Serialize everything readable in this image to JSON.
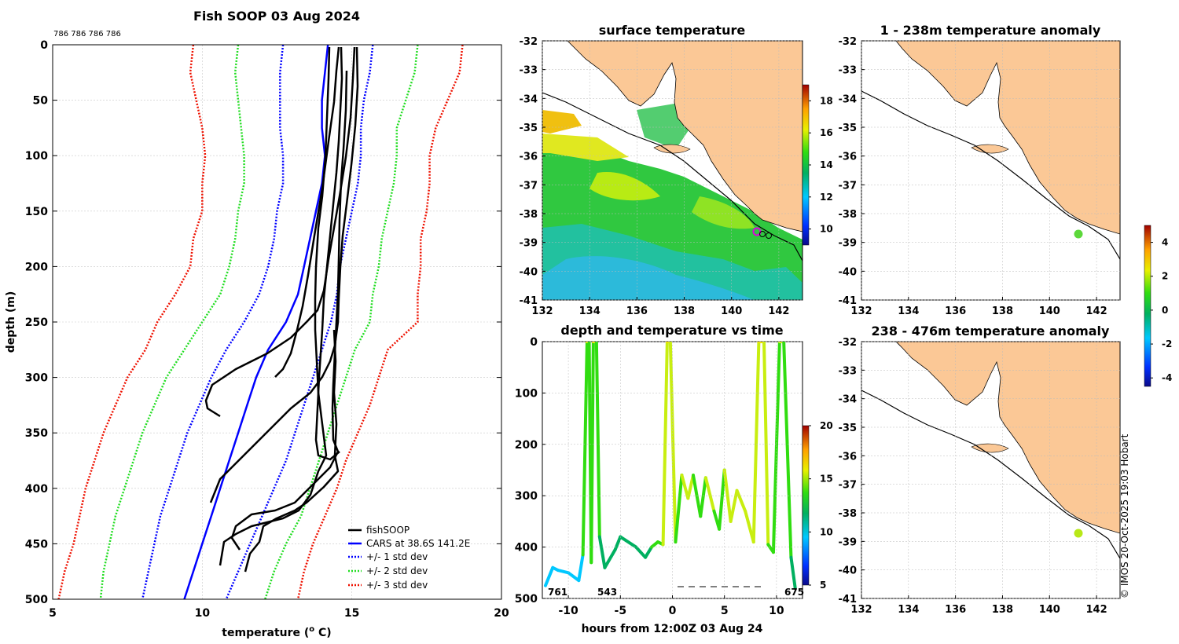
{
  "header": {
    "title": "Fish SOOP 03 Aug 2024",
    "top_label": "786 786 786 786"
  },
  "profile": {
    "xlabel": "temperature (",
    "xlabel_sup": "o",
    "xlabel_end": " C)",
    "ylabel": "depth (m)"
  },
  "sst": {
    "title": "surface temperature"
  },
  "time_panel": {
    "title": "depth and temperature vs time",
    "xlabel": "hours from 12:00Z 03 Aug 24",
    "counts": [
      "761",
      "543",
      "675"
    ]
  },
  "anomaly1": {
    "title": "1 - 238m temperature anomaly"
  },
  "anomaly2": {
    "title": "238 - 476m temperature anomaly"
  },
  "credit": "© IMOS 20-Oct-2025 19:03 Hobart",
  "colors": {
    "land": "#fbc896",
    "cars": "#0000ff",
    "std1": "#0000ff",
    "std2": "#22dd22",
    "std3": "#ee1100",
    "fishsoop": "#000000"
  },
  "chart_data": [
    {
      "type": "line",
      "title": "Fish SOOP 03 Aug 2024",
      "xlabel": "temperature (o C)",
      "ylabel": "depth (m)",
      "xlim": [
        5,
        20
      ],
      "ylim": [
        500,
        0
      ],
      "xticks": [
        "5",
        "10",
        "15",
        "20"
      ],
      "yticks": [
        "0",
        "50",
        "100",
        "150",
        "200",
        "250",
        "300",
        "350",
        "400",
        "450",
        "500"
      ],
      "legend": [
        "fishSOOP",
        "CARS at 38.6S 141.2E",
        "+/- 1 std dev",
        "+/- 2 std dev",
        "+/- 3 std dev"
      ],
      "depth": [
        0,
        25,
        50,
        75,
        100,
        125,
        150,
        175,
        200,
        225,
        250,
        275,
        300,
        325,
        350,
        375,
        400,
        425,
        450,
        475,
        500
      ],
      "series": [
        {
          "name": "CARS at 38.6S 141.2E",
          "temp": [
            14.2,
            14.1,
            14.0,
            14.0,
            14.1,
            14.0,
            13.8,
            13.6,
            13.4,
            13.2,
            12.8,
            12.2,
            11.8,
            11.5,
            11.2,
            10.9,
            10.6,
            10.3,
            10.0,
            9.7,
            9.4
          ]
        },
        {
          "name": "+1 std dev",
          "temp": [
            15.7,
            15.6,
            15.4,
            15.3,
            15.3,
            15.2,
            15.0,
            14.8,
            14.6,
            14.5,
            14.3,
            14.0,
            13.7,
            13.4,
            13.1,
            12.8,
            12.4,
            12.0,
            11.6,
            11.2,
            10.8
          ]
        },
        {
          "name": "-1 std dev",
          "temp": [
            12.7,
            12.6,
            12.6,
            12.6,
            12.7,
            12.7,
            12.5,
            12.4,
            12.2,
            11.9,
            11.4,
            10.8,
            10.3,
            9.9,
            9.5,
            9.2,
            8.9,
            8.6,
            8.4,
            8.2,
            8.0
          ]
        },
        {
          "name": "+2 std dev",
          "temp": [
            17.2,
            17.1,
            16.8,
            16.5,
            16.5,
            16.4,
            16.2,
            16.0,
            15.9,
            15.7,
            15.6,
            15.1,
            14.8,
            14.5,
            14.2,
            13.9,
            13.6,
            13.3,
            12.8,
            12.4,
            12.1
          ]
        },
        {
          "name": "-2 std dev",
          "temp": [
            11.2,
            11.1,
            11.2,
            11.3,
            11.4,
            11.4,
            11.2,
            11.1,
            10.9,
            10.6,
            10.0,
            9.4,
            8.8,
            8.4,
            8.0,
            7.7,
            7.4,
            7.1,
            6.9,
            6.7,
            6.6
          ]
        },
        {
          "name": "+3 std dev",
          "temp": [
            18.7,
            18.6,
            18.2,
            17.8,
            17.6,
            17.6,
            17.5,
            17.3,
            17.3,
            17.2,
            17.2,
            16.2,
            15.9,
            15.6,
            15.2,
            14.8,
            14.5,
            14.1,
            13.7,
            13.4,
            13.2
          ]
        },
        {
          "name": "-3 std dev",
          "temp": [
            9.7,
            9.6,
            9.8,
            10.0,
            10.1,
            10.0,
            10.0,
            9.7,
            9.6,
            9.1,
            8.5,
            8.1,
            7.5,
            7.1,
            6.7,
            6.4,
            6.1,
            5.9,
            5.7,
            5.4,
            5.2
          ]
        }
      ]
    },
    {
      "type": "heatmap",
      "title": "surface temperature",
      "xlim": [
        132,
        143
      ],
      "ylim": [
        -41,
        -32
      ],
      "xticks": [
        "132",
        "134",
        "136",
        "138",
        "140",
        "142"
      ],
      "yticks": [
        "-32",
        "-33",
        "-34",
        "-35",
        "-36",
        "-37",
        "-38",
        "-39",
        "-40",
        "-41"
      ],
      "colorbar_ticks": [
        "10",
        "12",
        "14",
        "16",
        "18"
      ],
      "vessel_position": {
        "lon": 141.2,
        "lat": -38.6
      }
    },
    {
      "type": "line",
      "title": "depth and temperature vs time",
      "xlabel": "hours from 12:00Z 03 Aug 24",
      "xlim": [
        -12.5,
        12.5
      ],
      "ylim": [
        500,
        0
      ],
      "xticks": [
        "-10",
        "-5",
        "0",
        "5",
        "10"
      ],
      "yticks": [
        "0",
        "100",
        "200",
        "300",
        "400",
        "500"
      ],
      "colorbar_ticks": [
        "5",
        "10",
        "15",
        "20"
      ],
      "hours": [
        -12.2,
        -11.5,
        -11.0,
        -10.0,
        -9.0,
        -8.6,
        -8.2,
        -8.0,
        -7.8,
        -7.6,
        -7.3,
        -7.0,
        -6.5,
        -5.5,
        -5.0,
        -3.5,
        -2.6,
        -2.0,
        -1.4,
        -0.9,
        -0.5,
        -0.2,
        0.3,
        0.9,
        1.5,
        2.0,
        2.7,
        3.2,
        4.0,
        4.5,
        5.0,
        5.6,
        6.2,
        7.0,
        7.8,
        8.3,
        8.8,
        9.2,
        9.7,
        10.3,
        10.7,
        11.4,
        11.8
      ],
      "depth": [
        475,
        440,
        445,
        450,
        465,
        415,
        0,
        0,
        430,
        0,
        0,
        380,
        440,
        405,
        380,
        400,
        420,
        400,
        390,
        395,
        0,
        0,
        390,
        260,
        305,
        260,
        340,
        265,
        330,
        365,
        250,
        350,
        290,
        330,
        390,
        0,
        0,
        395,
        410,
        0,
        0,
        420,
        480
      ],
      "temperature": [
        10.5,
        11.0,
        11.0,
        11.0,
        10.5,
        11.5,
        15.5,
        15.5,
        12.0,
        15.5,
        15.5,
        12.0,
        11.0,
        12.0,
        12.5,
        12.5,
        12.0,
        13.0,
        14.0,
        14.0,
        15.5,
        15.5,
        14.0,
        14.5,
        14.5,
        14.5,
        14.0,
        14.5,
        14.5,
        14.0,
        14.5,
        14.5,
        14.5,
        14.5,
        14.5,
        15.5,
        15.5,
        14.5,
        12.5,
        15.5,
        14.0,
        12.0,
        11.0
      ],
      "annotations": [
        "761",
        "543",
        "675"
      ]
    },
    {
      "type": "heatmap",
      "title": "1 - 238m temperature anomaly",
      "xlim": [
        132,
        143
      ],
      "ylim": [
        -41,
        -32
      ],
      "xticks": [
        "132",
        "134",
        "136",
        "138",
        "140",
        "142"
      ],
      "yticks": [
        "-32",
        "-33",
        "-34",
        "-35",
        "-36",
        "-37",
        "-38",
        "-39",
        "-40",
        "-41"
      ],
      "colorbar_ticks": [
        "-4",
        "-2",
        "0",
        "2",
        "4"
      ],
      "anomaly_point": {
        "lon": 141.3,
        "lat": -38.7,
        "value": 0.4
      }
    },
    {
      "type": "heatmap",
      "title": "238 - 476m temperature anomaly",
      "xlim": [
        132,
        143
      ],
      "ylim": [
        -41,
        -32
      ],
      "xticks": [
        "132",
        "134",
        "136",
        "138",
        "140",
        "142"
      ],
      "yticks": [
        "-32",
        "-33",
        "-34",
        "-35",
        "-36",
        "-37",
        "-38",
        "-39",
        "-40",
        "-41"
      ],
      "anomaly_point": {
        "lon": 141.3,
        "lat": -38.7,
        "value": 1.3
      }
    }
  ]
}
